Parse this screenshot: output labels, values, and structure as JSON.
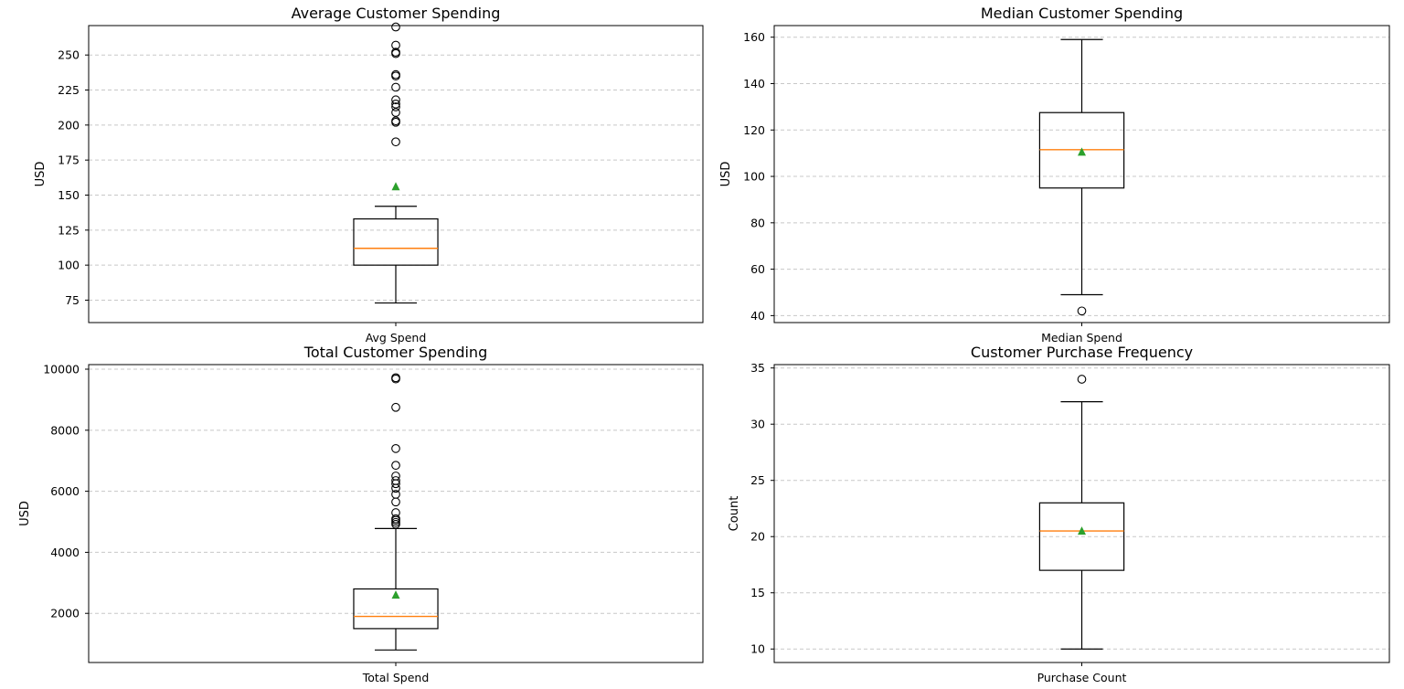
{
  "chart_data": [
    {
      "type": "box",
      "title": "Average Customer Spending",
      "ylabel": "USD",
      "xlabel": "",
      "categories": [
        "Avg Spend"
      ],
      "ylim": [
        59,
        271
      ],
      "yticks": [
        75,
        100,
        125,
        150,
        175,
        200,
        225,
        250
      ],
      "grid": "y",
      "box": {
        "whisker_low": 73,
        "q1": 100,
        "median": 112,
        "q3": 133,
        "whisker_high": 142,
        "mean": 156
      },
      "outliers": [
        188,
        202,
        203,
        209,
        213,
        215,
        218,
        227,
        235,
        236,
        251,
        252,
        257,
        270
      ]
    },
    {
      "type": "box",
      "title": "Median Customer Spending",
      "ylabel": "USD",
      "xlabel": "",
      "categories": [
        "Median Spend"
      ],
      "ylim": [
        37,
        165
      ],
      "yticks": [
        40,
        60,
        80,
        100,
        120,
        140,
        160
      ],
      "grid": "y",
      "box": {
        "whisker_low": 49,
        "q1": 95,
        "median": 111.5,
        "q3": 127.5,
        "whisker_high": 159,
        "mean": 110.5
      },
      "outliers": [
        42
      ]
    },
    {
      "type": "box",
      "title": "Total Customer Spending",
      "ylabel": "USD",
      "xlabel": "",
      "categories": [
        "Total Spend"
      ],
      "ylim": [
        390,
        10150
      ],
      "yticks": [
        2000,
        4000,
        6000,
        8000,
        10000
      ],
      "grid": "y",
      "box": {
        "whisker_low": 800,
        "q1": 1500,
        "median": 1900,
        "q3": 2800,
        "whisker_high": 4780,
        "mean": 2600
      },
      "outliers": [
        4920,
        4980,
        5050,
        5100,
        5300,
        5650,
        5900,
        6100,
        6250,
        6350,
        6500,
        6850,
        7400,
        8750,
        9680,
        9720
      ]
    },
    {
      "type": "box",
      "title": "Customer Purchase Frequency",
      "ylabel": "Count",
      "xlabel": "",
      "categories": [
        "Purchase Count"
      ],
      "ylim": [
        8.8,
        35.3
      ],
      "yticks": [
        10,
        15,
        20,
        25,
        30,
        35
      ],
      "grid": "y",
      "box": {
        "whisker_low": 10,
        "q1": 17,
        "median": 20.5,
        "q3": 23,
        "whisker_high": 32,
        "mean": 20.5
      },
      "outliers": [
        34
      ]
    }
  ],
  "colors": {
    "median": "#ff7f0e",
    "mean": "#2ca02c",
    "box": "#000000",
    "grid": "#c8c8c8"
  }
}
